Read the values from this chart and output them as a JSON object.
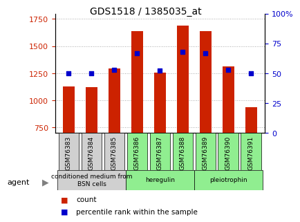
{
  "title": "GDS1518 / 1385035_at",
  "samples": [
    "GSM76383",
    "GSM76384",
    "GSM76385",
    "GSM76386",
    "GSM76387",
    "GSM76388",
    "GSM76389",
    "GSM76390",
    "GSM76391"
  ],
  "count_values": [
    1130,
    1125,
    1295,
    1640,
    1255,
    1690,
    1640,
    1310,
    940
  ],
  "percentile_values": [
    50,
    50,
    53,
    67,
    52,
    68,
    67,
    53,
    50
  ],
  "groups": [
    {
      "label": "conditioned medium from\nBSN cells",
      "start": 0,
      "end": 3,
      "color": "#d0d0d0"
    },
    {
      "label": "heregulin",
      "start": 3,
      "end": 6,
      "color": "#90ee90"
    },
    {
      "label": "pleiotrophin",
      "start": 6,
      "end": 9,
      "color": "#90ee90"
    }
  ],
  "bar_color": "#cc2200",
  "dot_color": "#0000cc",
  "ylim_left": [
    700,
    1800
  ],
  "ylim_right": [
    0,
    100
  ],
  "yticks_left": [
    750,
    1000,
    1250,
    1500,
    1750
  ],
  "yticks_right": [
    0,
    25,
    50,
    75,
    100
  ],
  "yticklabels_right": [
    "0",
    "25",
    "50",
    "75",
    "100%"
  ],
  "bar_bottom": 700,
  "grid_color": "#aaaaaa",
  "bg_color": "#ffffff",
  "plot_bg": "#ffffff",
  "agent_label": "agent"
}
